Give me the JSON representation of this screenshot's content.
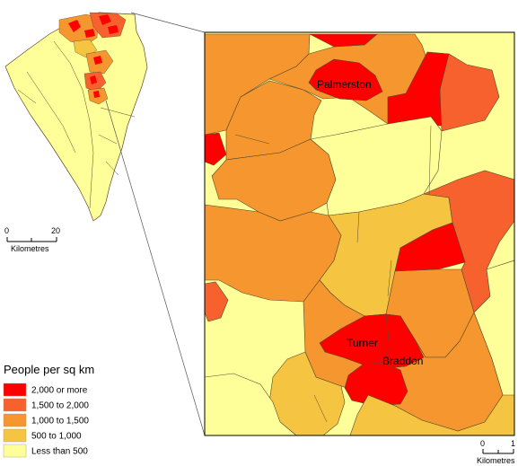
{
  "legend": {
    "title": "People per sq km",
    "items": [
      {
        "label": "2,000 or more",
        "color": "#ff0000"
      },
      {
        "label": "1,500 to 2,000",
        "color": "#f6612e"
      },
      {
        "label": "1,000 to 1,500",
        "color": "#f6962e"
      },
      {
        "label": "500 to 1,000",
        "color": "#f5c542"
      },
      {
        "label": "Less than 500",
        "color": "#ffff99"
      }
    ]
  },
  "overview_scale": {
    "start": "0",
    "end": "20",
    "unit": "Kilometres"
  },
  "inset_scale": {
    "start": "0",
    "end": "1",
    "unit": "Kilometres"
  },
  "place_labels": {
    "palmerston": "Palmerston",
    "turner": "Turner",
    "braddon": "Braddon"
  },
  "colors": {
    "high": "#ff0000",
    "upper": "#f6612e",
    "mid": "#f6962e",
    "lower": "#f5c542",
    "low": "#ffff99",
    "boundary": "#5a4a2a",
    "background": "#ffffff"
  }
}
